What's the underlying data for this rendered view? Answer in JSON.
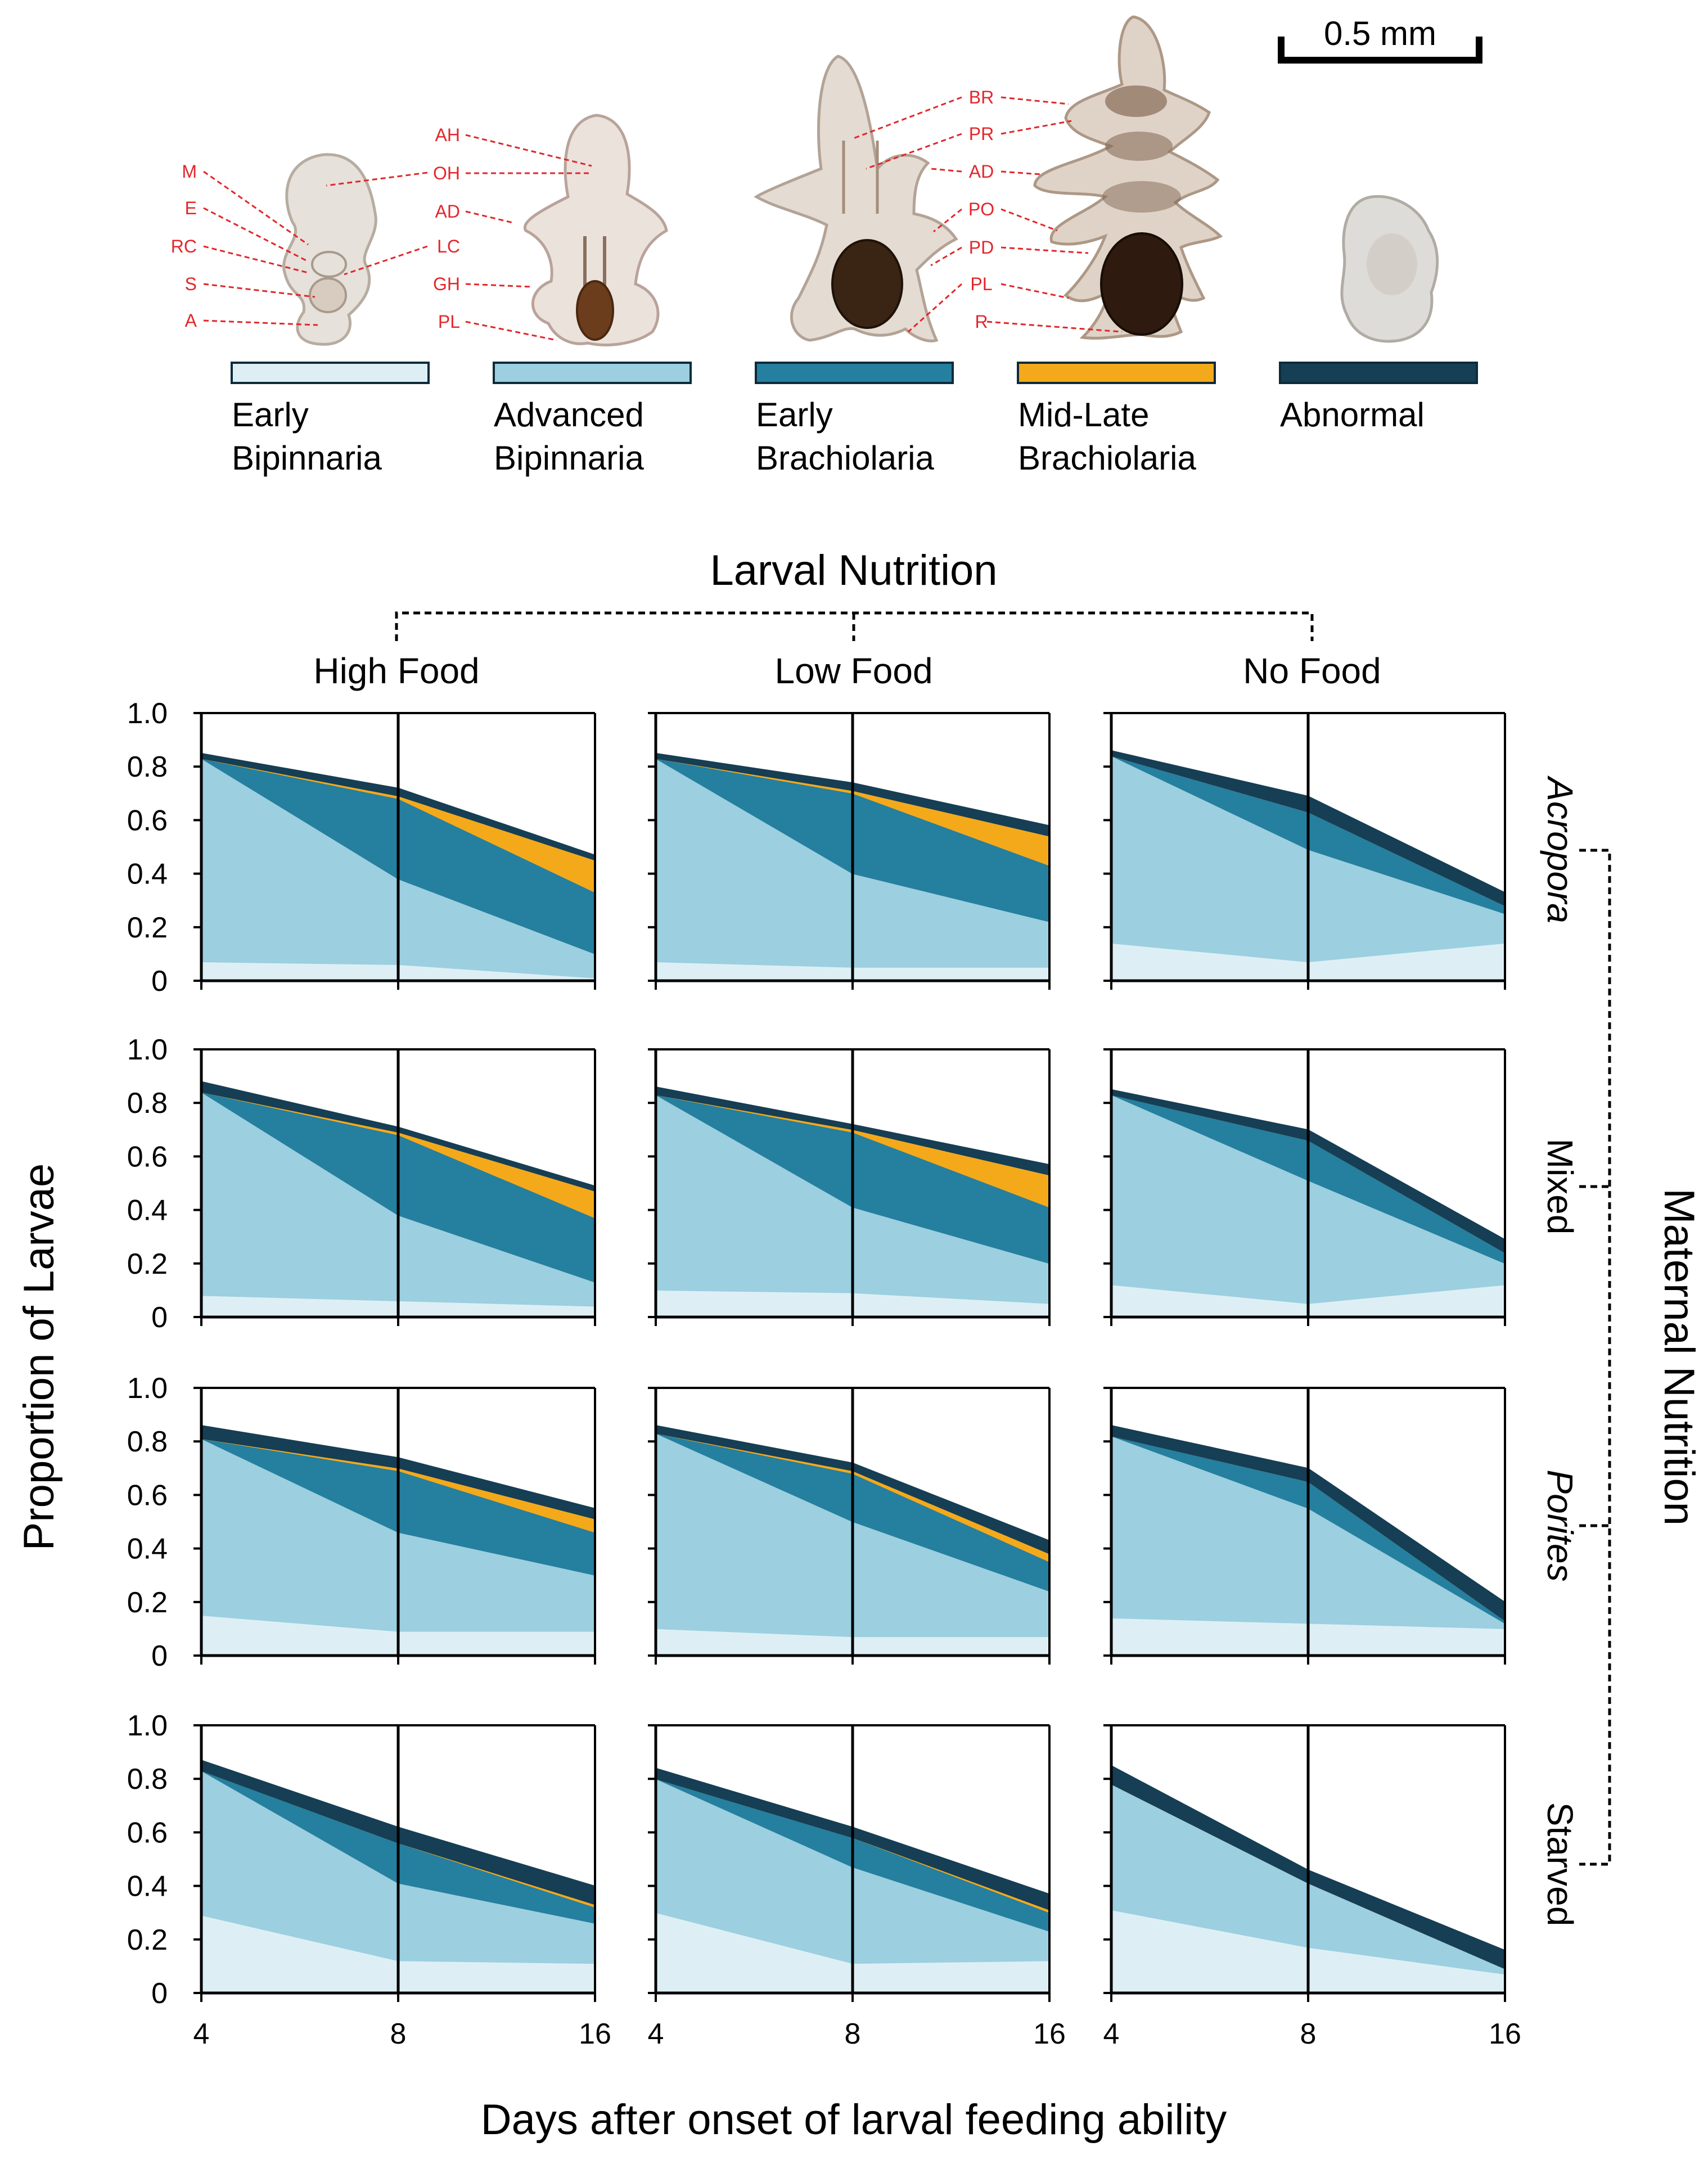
{
  "scale_bar": {
    "label": "0.5 mm"
  },
  "stages": [
    {
      "key": "early_bip",
      "line1": "Early",
      "line2": "Bipinnaria",
      "color": "#ddeff5",
      "stroke": "#0c2b3b"
    },
    {
      "key": "adv_bip",
      "line1": "Advanced",
      "line2": "Bipinnaria",
      "color": "#9ccfdf",
      "stroke": "#0c2b3b"
    },
    {
      "key": "early_brach",
      "line1": "Early",
      "line2": "Brachiolaria",
      "color": "#257f9f",
      "stroke": "#0c2b3b"
    },
    {
      "key": "midlate_brach",
      "line1": "Mid-Late",
      "line2": "Brachiolaria",
      "color": "#f4a91b",
      "stroke": "#0c2b3b"
    },
    {
      "key": "abnormal",
      "line1": "Abnormal",
      "line2": "",
      "color": "#163e54",
      "stroke": "#0c2b3b"
    }
  ],
  "anatomy_labels": {
    "larva1": [
      "M",
      "E",
      "RC",
      "S",
      "A"
    ],
    "larva2": [
      "AH",
      "OH",
      "AD",
      "LC",
      "GH",
      "PL"
    ],
    "larva4": [
      "BR",
      "PR",
      "AD",
      "PO",
      "PD",
      "PL",
      "R"
    ]
  },
  "larval_nutrition": {
    "title": "Larval Nutrition",
    "columns": [
      "High Food",
      "Low Food",
      "No Food"
    ]
  },
  "maternal_nutrition": {
    "title": "Maternal Nutrition",
    "rows": [
      "Acropora",
      "Mixed",
      "Porites",
      "Starved"
    ]
  },
  "axes": {
    "ylabel": "Proportion of Larvae",
    "xlabel": "Days after onset of larval feeding ability",
    "yticks": [
      "1.0",
      "0.8",
      "0.6",
      "0.4",
      "0.2",
      "0"
    ],
    "xticks": [
      "4",
      "8",
      "16"
    ]
  },
  "chart_data": {
    "type": "area",
    "stacked": true,
    "x": [
      4,
      8,
      16
    ],
    "ylim": [
      0,
      1
    ],
    "series_order": [
      "Early Bipinnaria",
      "Advanced Bipinnaria",
      "Early Brachiolaria",
      "Mid-Late Brachiolaria",
      "Abnormal"
    ],
    "panels": [
      {
        "maternal": "Acropora",
        "larval": "High Food",
        "values": {
          "Early Bipinnaria": [
            0.07,
            0.06,
            0.01
          ],
          "Advanced Bipinnaria": [
            0.76,
            0.32,
            0.09
          ],
          "Early Brachiolaria": [
            0.0,
            0.3,
            0.23
          ],
          "Mid-Late Brachiolaria": [
            0.0,
            0.01,
            0.12
          ],
          "Abnormal": [
            0.02,
            0.03,
            0.02
          ]
        }
      },
      {
        "maternal": "Acropora",
        "larval": "Low Food",
        "values": {
          "Early Bipinnaria": [
            0.07,
            0.05,
            0.05
          ],
          "Advanced Bipinnaria": [
            0.76,
            0.35,
            0.17
          ],
          "Early Brachiolaria": [
            0.0,
            0.3,
            0.21
          ],
          "Mid-Late Brachiolaria": [
            0.0,
            0.01,
            0.11
          ],
          "Abnormal": [
            0.02,
            0.03,
            0.04
          ]
        }
      },
      {
        "maternal": "Acropora",
        "larval": "No Food",
        "values": {
          "Early Bipinnaria": [
            0.14,
            0.07,
            0.14
          ],
          "Advanced Bipinnaria": [
            0.7,
            0.42,
            0.11
          ],
          "Early Brachiolaria": [
            0.0,
            0.14,
            0.03
          ],
          "Mid-Late Brachiolaria": [
            0.0,
            0.0,
            0.0
          ],
          "Abnormal": [
            0.02,
            0.06,
            0.05
          ]
        }
      },
      {
        "maternal": "Mixed",
        "larval": "High Food",
        "values": {
          "Early Bipinnaria": [
            0.08,
            0.06,
            0.04
          ],
          "Advanced Bipinnaria": [
            0.76,
            0.32,
            0.09
          ],
          "Early Brachiolaria": [
            0.0,
            0.3,
            0.24
          ],
          "Mid-Late Brachiolaria": [
            0.0,
            0.01,
            0.1
          ],
          "Abnormal": [
            0.04,
            0.02,
            0.02
          ]
        }
      },
      {
        "maternal": "Mixed",
        "larval": "Low Food",
        "values": {
          "Early Bipinnaria": [
            0.1,
            0.09,
            0.05
          ],
          "Advanced Bipinnaria": [
            0.73,
            0.32,
            0.15
          ],
          "Early Brachiolaria": [
            0.0,
            0.28,
            0.21
          ],
          "Mid-Late Brachiolaria": [
            0.0,
            0.01,
            0.12
          ],
          "Abnormal": [
            0.03,
            0.02,
            0.04
          ]
        }
      },
      {
        "maternal": "Mixed",
        "larval": "No Food",
        "values": {
          "Early Bipinnaria": [
            0.12,
            0.05,
            0.12
          ],
          "Advanced Bipinnaria": [
            0.71,
            0.46,
            0.08
          ],
          "Early Brachiolaria": [
            0.0,
            0.15,
            0.04
          ],
          "Mid-Late Brachiolaria": [
            0.0,
            0.0,
            0.0
          ],
          "Abnormal": [
            0.02,
            0.04,
            0.05
          ]
        }
      },
      {
        "maternal": "Porites",
        "larval": "High Food",
        "values": {
          "Early Bipinnaria": [
            0.15,
            0.09,
            0.09
          ],
          "Advanced Bipinnaria": [
            0.66,
            0.37,
            0.21
          ],
          "Early Brachiolaria": [
            0.0,
            0.23,
            0.16
          ],
          "Mid-Late Brachiolaria": [
            0.0,
            0.01,
            0.05
          ],
          "Abnormal": [
            0.05,
            0.04,
            0.04
          ]
        }
      },
      {
        "maternal": "Porites",
        "larval": "Low Food",
        "values": {
          "Early Bipinnaria": [
            0.1,
            0.07,
            0.07
          ],
          "Advanced Bipinnaria": [
            0.73,
            0.43,
            0.17
          ],
          "Early Brachiolaria": [
            0.0,
            0.18,
            0.11
          ],
          "Mid-Late Brachiolaria": [
            0.0,
            0.01,
            0.03
          ],
          "Abnormal": [
            0.03,
            0.03,
            0.05
          ]
        }
      },
      {
        "maternal": "Porites",
        "larval": "No Food",
        "values": {
          "Early Bipinnaria": [
            0.14,
            0.12,
            0.1
          ],
          "Advanced Bipinnaria": [
            0.68,
            0.43,
            0.02
          ],
          "Early Brachiolaria": [
            0.0,
            0.1,
            0.01
          ],
          "Mid-Late Brachiolaria": [
            0.0,
            0.0,
            0.0
          ],
          "Abnormal": [
            0.04,
            0.05,
            0.07
          ]
        }
      },
      {
        "maternal": "Starved",
        "larval": "High Food",
        "values": {
          "Early Bipinnaria": [
            0.29,
            0.12,
            0.11
          ],
          "Advanced Bipinnaria": [
            0.54,
            0.29,
            0.15
          ],
          "Early Brachiolaria": [
            0.0,
            0.15,
            0.06
          ],
          "Mid-Late Brachiolaria": [
            0.0,
            0.0,
            0.01
          ],
          "Abnormal": [
            0.04,
            0.06,
            0.07
          ]
        }
      },
      {
        "maternal": "Starved",
        "larval": "Low Food",
        "values": {
          "Early Bipinnaria": [
            0.3,
            0.11,
            0.12
          ],
          "Advanced Bipinnaria": [
            0.5,
            0.36,
            0.11
          ],
          "Early Brachiolaria": [
            0.0,
            0.11,
            0.07
          ],
          "Mid-Late Brachiolaria": [
            0.0,
            0.0,
            0.01
          ],
          "Abnormal": [
            0.04,
            0.04,
            0.06
          ]
        }
      },
      {
        "maternal": "Starved",
        "larval": "No Food",
        "values": {
          "Early Bipinnaria": [
            0.31,
            0.17,
            0.07
          ],
          "Advanced Bipinnaria": [
            0.47,
            0.24,
            0.02
          ],
          "Early Brachiolaria": [
            0.0,
            0.0,
            0.0
          ],
          "Mid-Late Brachiolaria": [
            0.0,
            0.0,
            0.0
          ],
          "Abnormal": [
            0.07,
            0.05,
            0.07
          ]
        }
      }
    ]
  }
}
